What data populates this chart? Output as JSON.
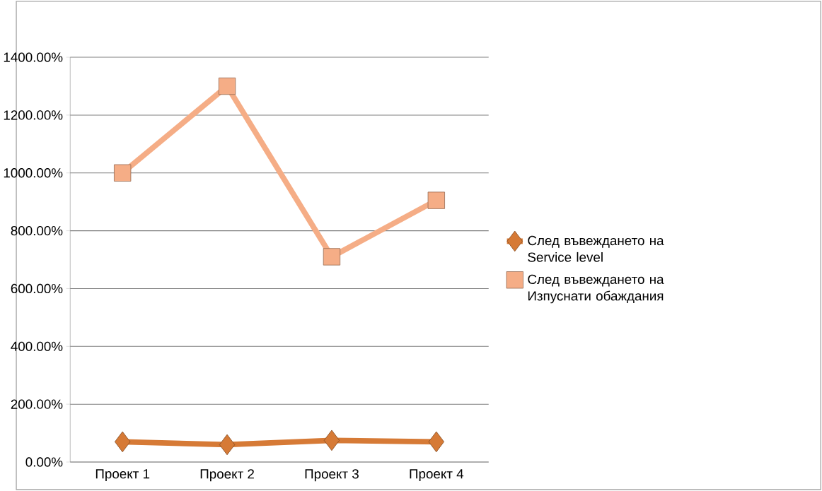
{
  "chart_data": {
    "type": "line",
    "categories": [
      "Проект 1",
      "Проект 2",
      "Проект 3",
      "Проект 4"
    ],
    "series": [
      {
        "name": "След въвеждането на Service level",
        "color": "#d67a36",
        "marker": "diamond",
        "values": [
          70,
          60,
          75,
          70
        ]
      },
      {
        "name": "След въвеждането на Изпуснати обаждания",
        "color": "#f5ad86",
        "marker": "square",
        "values": [
          1000,
          1300,
          710,
          905
        ]
      }
    ],
    "ylim": [
      0,
      1400
    ],
    "yticks": [
      {
        "value": 0,
        "label": "0.00%"
      },
      {
        "value": 200,
        "label": "200.00%"
      },
      {
        "value": 400,
        "label": "400.00%"
      },
      {
        "value": 600,
        "label": "600.00%"
      },
      {
        "value": 800,
        "label": "800.00%"
      },
      {
        "value": 1000,
        "label": "1000.00%"
      },
      {
        "value": 1200,
        "label": "1200.00%"
      },
      {
        "value": 1400,
        "label": "1400.00%"
      }
    ],
    "grid": "y",
    "legend": "right"
  }
}
